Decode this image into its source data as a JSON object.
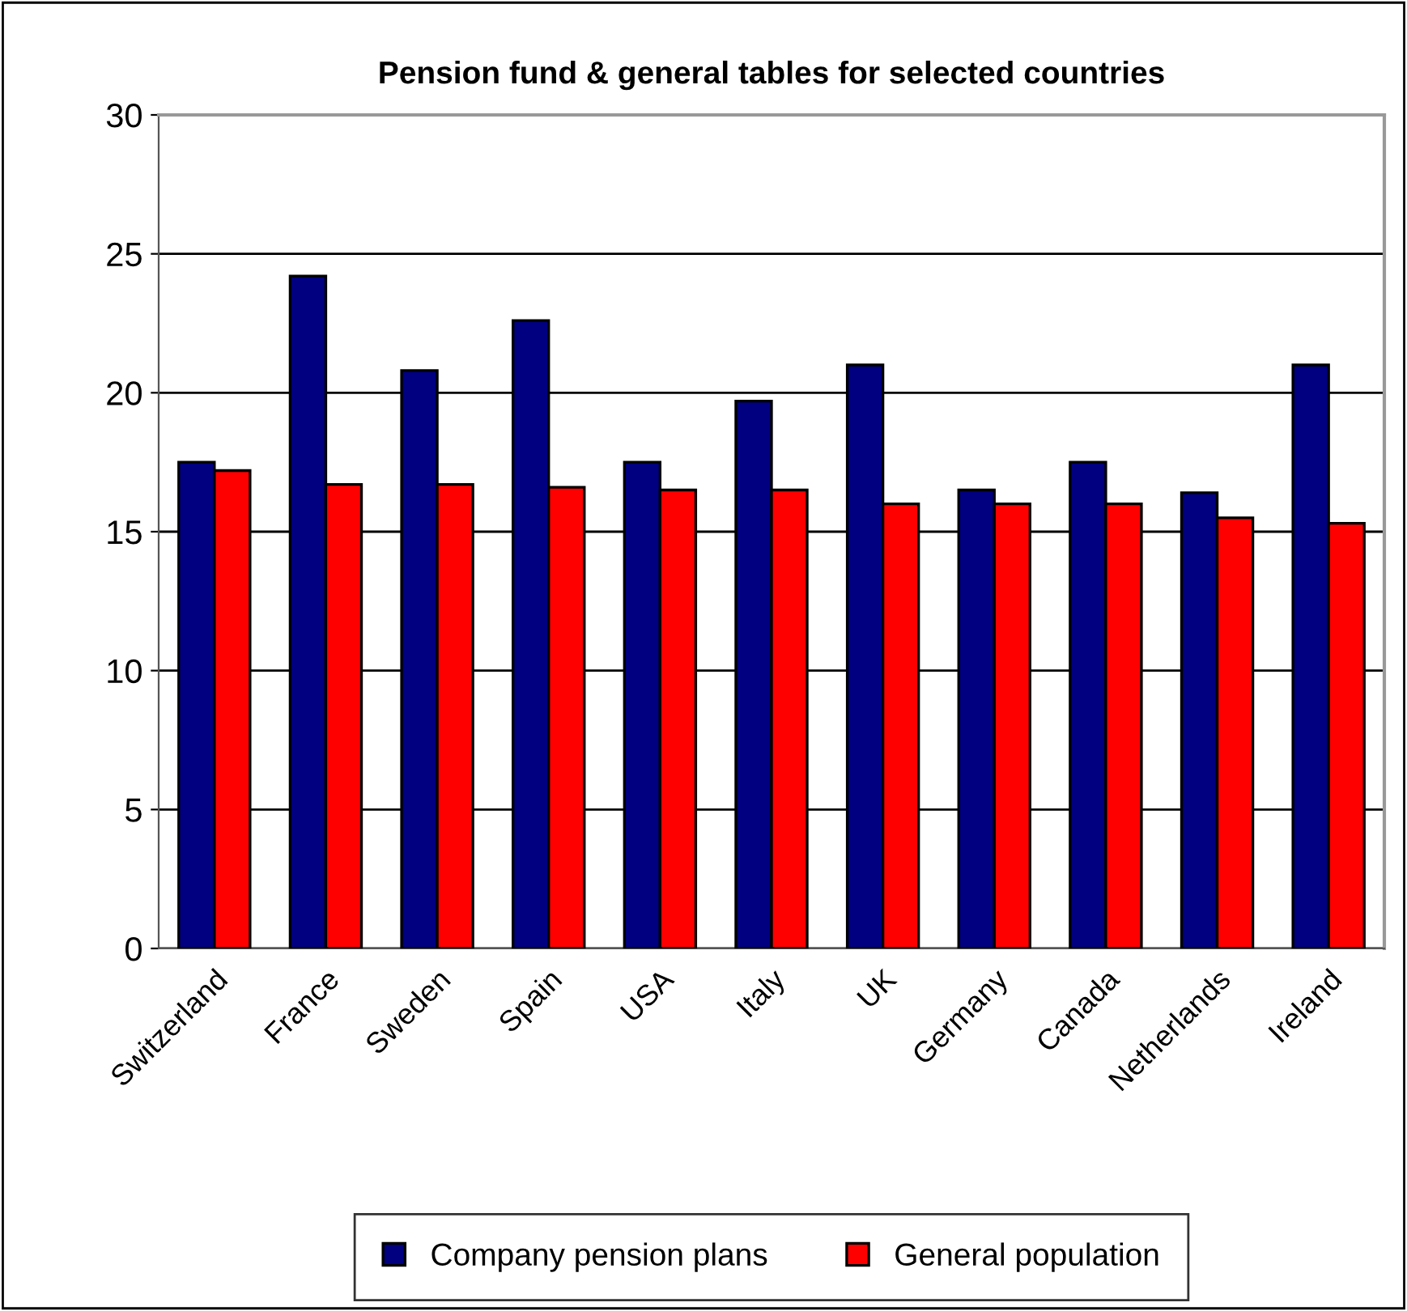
{
  "chart_data": {
    "type": "bar",
    "title": "Pension fund & general tables for selected countries",
    "categories": [
      "Switzerland",
      "France",
      "Sweden",
      "Spain",
      "USA",
      "Italy",
      "UK",
      "Germany",
      "Canada",
      "Netherlands",
      "Ireland"
    ],
    "series": [
      {
        "name": "Company pension plans",
        "color": "#000080",
        "values": [
          17.5,
          24.2,
          20.8,
          22.6,
          17.5,
          19.7,
          21.0,
          16.5,
          17.5,
          16.4,
          21.0
        ]
      },
      {
        "name": "General population",
        "color": "#ff0000",
        "values": [
          17.2,
          16.7,
          16.7,
          16.6,
          16.5,
          16.5,
          16.0,
          16.0,
          16.0,
          15.5,
          15.3
        ]
      }
    ],
    "ylim": [
      0,
      30
    ],
    "yticks": [
      0,
      5,
      10,
      15,
      20,
      25,
      30
    ],
    "grid": "y",
    "legend": "bottom"
  }
}
